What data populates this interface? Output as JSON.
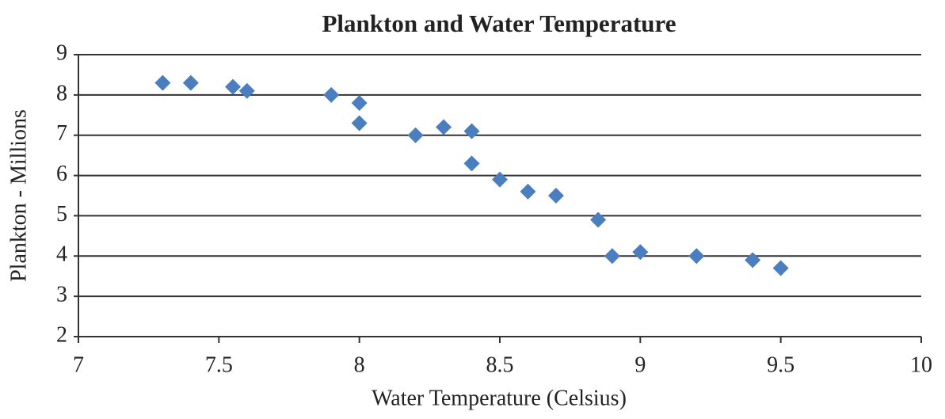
{
  "chart_data": {
    "type": "scatter",
    "title": "Plankton and Water Temperature",
    "x_label": "Water Temperature (Celsius)",
    "y_label": "Plankton - Millions",
    "color": "#4a7ebf",
    "x": [
      7.3,
      7.4,
      7.55,
      7.6,
      7.9,
      8.0,
      8.0,
      8.2,
      8.3,
      8.4,
      8.4,
      8.5,
      8.6,
      8.7,
      8.85,
      8.9,
      9.0,
      9.2,
      9.4,
      9.5
    ],
    "values": [
      8.3,
      8.3,
      8.2,
      8.1,
      8.0,
      7.8,
      7.3,
      7.0,
      7.2,
      7.1,
      6.3,
      5.9,
      5.6,
      5.5,
      4.9,
      4.0,
      4.1,
      4.0,
      3.9,
      3.7
    ],
    "xlim": [
      7,
      10
    ],
    "xticks": [
      7,
      7.5,
      8,
      8.5,
      9,
      9.5,
      10
    ],
    "ylim": [
      2,
      9
    ],
    "yticks": [
      2,
      3,
      4,
      5,
      6,
      7,
      8,
      9
    ],
    "grid": true
  }
}
